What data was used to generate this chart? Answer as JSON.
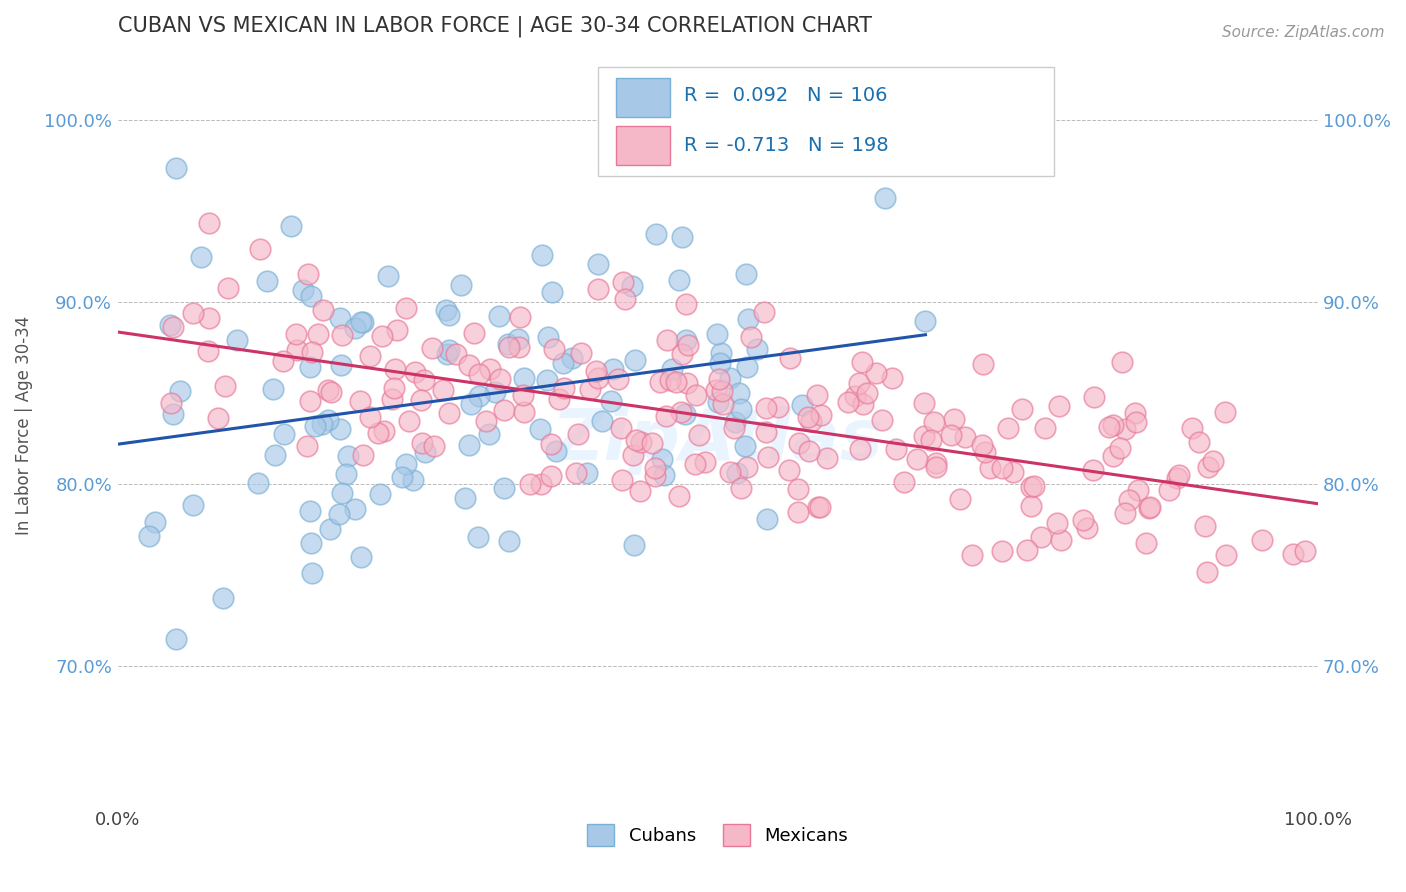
{
  "title": "CUBAN VS MEXICAN IN LABOR FORCE | AGE 30-34 CORRELATION CHART",
  "source_text": "Source: ZipAtlas.com",
  "ylabel": "In Labor Force | Age 30-34",
  "xlim": [
    0.0,
    1.0
  ],
  "ylim": [
    0.625,
    1.04
  ],
  "yticks": [
    0.7,
    0.8,
    0.9,
    1.0
  ],
  "ytick_labels": [
    "70.0%",
    "80.0%",
    "90.0%",
    "100.0%"
  ],
  "xticks": [
    0.0,
    1.0
  ],
  "xtick_labels": [
    "0.0%",
    "100.0%"
  ],
  "cuban_R": 0.092,
  "cuban_N": 106,
  "mexican_R": -0.713,
  "mexican_N": 198,
  "cuban_color": "#a8c8e8",
  "cuban_edge_color": "#7ab0d4",
  "mexican_color": "#f5b8c8",
  "mexican_edge_color": "#e87898",
  "cuban_line_color": "#2255aa",
  "mexican_line_color": "#cc3366",
  "legend_label_cuban": "Cubans",
  "legend_label_mexican": "Mexicans",
  "background_color": "#ffffff",
  "grid_color": "#bbbbbb",
  "title_color": "#333333",
  "axis_label_color": "#555555",
  "tick_color": "#5b9bd5",
  "watermark": "ZipAtlas",
  "cuban_seed": 7,
  "mexican_seed": 13
}
